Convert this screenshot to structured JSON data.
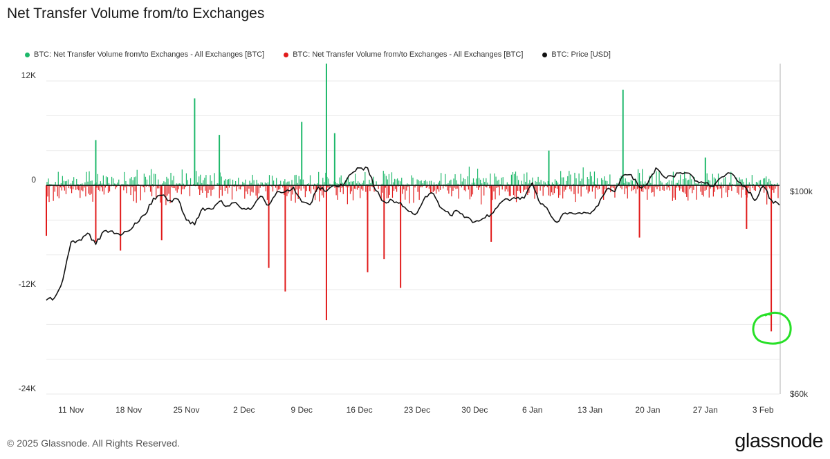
{
  "title": "Net Transfer Volume from/to Exchanges",
  "legend": [
    {
      "label": "BTC: Net Transfer Volume from/to Exchanges - All Exchanges [BTC]",
      "color": "#1db86a"
    },
    {
      "label": "BTC: Net Transfer Volume from/to Exchanges - All Exchanges [BTC]",
      "color": "#e11b1b"
    },
    {
      "label": "BTC: Price [USD]",
      "color": "#111111"
    }
  ],
  "footer": "© 2025 Glassnode. All Rights Reserved.",
  "logo": "glassnode",
  "chart_data": {
    "type": "bar",
    "title": "Net Transfer Volume from/to Exchanges",
    "x_tick_labels": [
      "11 Nov",
      "18 Nov",
      "25 Nov",
      "2 Dec",
      "9 Dec",
      "16 Dec",
      "23 Dec",
      "30 Dec",
      "6 Jan",
      "13 Jan",
      "20 Jan",
      "27 Jan",
      "3 Feb"
    ],
    "x_range": [
      "2024-11-08",
      "2025-02-05"
    ],
    "y_left": {
      "ticks": [
        12000,
        0,
        -12000,
        -24000
      ],
      "tick_labels": [
        "12K",
        "0",
        "-12K",
        "-24K"
      ],
      "ylim": [
        -24000,
        14000
      ]
    },
    "y_right": {
      "ticks": [
        100000,
        60000
      ],
      "tick_labels": [
        "$100k",
        "$60k"
      ],
      "ylim": [
        60000,
        138000
      ],
      "scale": "log"
    },
    "grid": true,
    "legend_position": "top-left",
    "series": [
      {
        "name": "BTC: Net Transfer Volume from/to Exchanges - All Exchanges [BTC]",
        "type": "bar",
        "color": "#1db86a",
        "sign": "positive",
        "notable_values": [
          {
            "x": "2024-11-14",
            "value": 5200
          },
          {
            "x": "2024-11-26",
            "value": 10000
          },
          {
            "x": "2024-11-29",
            "value": 5800
          },
          {
            "x": "2024-12-09",
            "value": 7300
          },
          {
            "x": "2024-12-12",
            "value": 14000
          },
          {
            "x": "2024-12-13",
            "value": 6000
          },
          {
            "x": "2025-01-17",
            "value": 11000
          },
          {
            "x": "2025-01-08",
            "value": 4000
          },
          {
            "x": "2025-01-27",
            "value": 3200
          }
        ]
      },
      {
        "name": "BTC: Net Transfer Volume from/to Exchanges - All Exchanges [BTC]",
        "type": "bar",
        "color": "#e11b1b",
        "sign": "negative",
        "notable_values": [
          {
            "x": "2024-11-08",
            "value": -5800
          },
          {
            "x": "2024-11-14",
            "value": -6500
          },
          {
            "x": "2024-11-17",
            "value": -7500
          },
          {
            "x": "2024-11-22",
            "value": -6300
          },
          {
            "x": "2024-12-05",
            "value": -9500
          },
          {
            "x": "2024-12-07",
            "value": -12200
          },
          {
            "x": "2024-12-12",
            "value": -15500
          },
          {
            "x": "2024-12-17",
            "value": -10000
          },
          {
            "x": "2024-12-19",
            "value": -8500
          },
          {
            "x": "2024-12-21",
            "value": -11800
          },
          {
            "x": "2025-01-01",
            "value": -6500
          },
          {
            "x": "2025-01-19",
            "value": -6000
          },
          {
            "x": "2025-02-01",
            "value": -5000
          },
          {
            "x": "2025-02-04",
            "value": -16800
          }
        ]
      },
      {
        "name": "BTC: Price [USD]",
        "type": "line",
        "color": "#111111",
        "axis": "right",
        "points": [
          [
            "2024-11-08",
            76000
          ],
          [
            "2024-11-09",
            76500
          ],
          [
            "2024-11-10",
            80000
          ],
          [
            "2024-11-11",
            88000
          ],
          [
            "2024-11-12",
            88500
          ],
          [
            "2024-11-13",
            90000
          ],
          [
            "2024-11-14",
            87500
          ],
          [
            "2024-11-15",
            90500
          ],
          [
            "2024-11-16",
            90500
          ],
          [
            "2024-11-17",
            89500
          ],
          [
            "2024-11-18",
            90500
          ],
          [
            "2024-11-19",
            92300
          ],
          [
            "2024-11-20",
            94300
          ],
          [
            "2024-11-21",
            98300
          ],
          [
            "2024-11-22",
            99000
          ],
          [
            "2024-11-23",
            97800
          ],
          [
            "2024-11-24",
            98000
          ],
          [
            "2024-11-25",
            93000
          ],
          [
            "2024-11-26",
            91900
          ],
          [
            "2024-11-27",
            95900
          ],
          [
            "2024-11-28",
            95600
          ],
          [
            "2024-11-29",
            97500
          ],
          [
            "2024-11-30",
            96400
          ],
          [
            "2024-12-01",
            97200
          ],
          [
            "2024-12-02",
            95800
          ],
          [
            "2024-12-03",
            96000
          ],
          [
            "2024-12-04",
            98800
          ],
          [
            "2024-12-05",
            96600
          ],
          [
            "2024-12-06",
            99900
          ],
          [
            "2024-12-07",
            99900
          ],
          [
            "2024-12-08",
            101100
          ],
          [
            "2024-12-09",
            97400
          ],
          [
            "2024-12-10",
            96700
          ],
          [
            "2024-12-11",
            101200
          ],
          [
            "2024-12-12",
            100000
          ],
          [
            "2024-12-13",
            101500
          ],
          [
            "2024-12-14",
            101400
          ],
          [
            "2024-12-15",
            104500
          ],
          [
            "2024-12-16",
            106100
          ],
          [
            "2024-12-17",
            106100
          ],
          [
            "2024-12-18",
            100200
          ],
          [
            "2024-12-19",
            97500
          ],
          [
            "2024-12-20",
            97800
          ],
          [
            "2024-12-21",
            97200
          ],
          [
            "2024-12-22",
            95100
          ],
          [
            "2024-12-23",
            94700
          ],
          [
            "2024-12-24",
            98700
          ],
          [
            "2024-12-25",
            99400
          ],
          [
            "2024-12-26",
            95800
          ],
          [
            "2024-12-27",
            94200
          ],
          [
            "2024-12-28",
            95100
          ],
          [
            "2024-12-29",
            93700
          ],
          [
            "2024-12-30",
            92600
          ],
          [
            "2024-12-31",
            93400
          ],
          [
            "2025-01-01",
            94400
          ],
          [
            "2025-01-02",
            96900
          ],
          [
            "2025-01-03",
            98100
          ],
          [
            "2025-01-04",
            98200
          ],
          [
            "2025-01-05",
            98300
          ],
          [
            "2025-01-06",
            102200
          ],
          [
            "2025-01-07",
            96900
          ],
          [
            "2025-01-08",
            95000
          ],
          [
            "2025-01-09",
            92500
          ],
          [
            "2025-01-10",
            94700
          ],
          [
            "2025-01-11",
            94500
          ],
          [
            "2025-01-12",
            94500
          ],
          [
            "2025-01-13",
            94500
          ],
          [
            "2025-01-14",
            96500
          ],
          [
            "2025-01-15",
            100500
          ],
          [
            "2025-01-16",
            99900
          ],
          [
            "2025-01-17",
            104100
          ],
          [
            "2025-01-18",
            104300
          ],
          [
            "2025-01-19",
            101100
          ],
          [
            "2025-01-20",
            102000
          ],
          [
            "2025-01-21",
            106100
          ],
          [
            "2025-01-22",
            103700
          ],
          [
            "2025-01-23",
            103900
          ],
          [
            "2025-01-24",
            104800
          ],
          [
            "2025-01-25",
            104700
          ],
          [
            "2025-01-26",
            102600
          ],
          [
            "2025-01-27",
            102100
          ],
          [
            "2025-01-28",
            101300
          ],
          [
            "2025-01-29",
            103700
          ],
          [
            "2025-01-30",
            104700
          ],
          [
            "2025-01-31",
            102400
          ],
          [
            "2025-02-01",
            100600
          ],
          [
            "2025-02-02",
            97700
          ],
          [
            "2025-02-03",
            101400
          ],
          [
            "2025-02-04",
            97900
          ],
          [
            "2025-02-05",
            96600
          ]
        ]
      }
    ]
  }
}
